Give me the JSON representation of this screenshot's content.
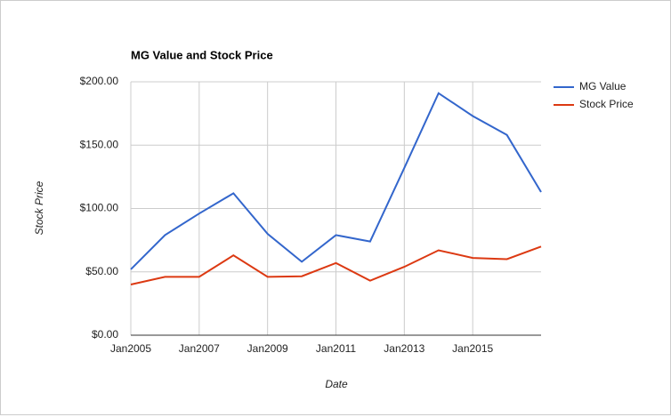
{
  "chart_data": {
    "type": "line",
    "title": "MG Value and Stock Price",
    "x_label": "Date",
    "y_label": "Stock Price",
    "x": [
      "2005-01",
      "2006-01",
      "2007-01",
      "2008-01",
      "2009-01",
      "2010-01",
      "2011-01",
      "2012-01",
      "2013-01",
      "2014-01",
      "2015-01",
      "2016-01",
      "2017-01"
    ],
    "series": [
      {
        "name": "MG Value",
        "color": "#3366cc",
        "values": [
          52,
          79,
          96,
          112,
          80,
          58,
          79,
          74,
          132,
          191,
          173,
          158,
          113
        ]
      },
      {
        "name": "Stock Price",
        "color": "#dc3912",
        "values": [
          40,
          46,
          46,
          63,
          46,
          46.5,
          57,
          43,
          54,
          67,
          61,
          60,
          70
        ]
      }
    ],
    "xlim": [
      "2005-01",
      "2017-01"
    ],
    "xticks": [
      {
        "value": "2005-01",
        "label": "Jan2005"
      },
      {
        "value": "2007-01",
        "label": "Jan2007"
      },
      {
        "value": "2009-01",
        "label": "Jan2009"
      },
      {
        "value": "2011-01",
        "label": "Jan2011"
      },
      {
        "value": "2013-01",
        "label": "Jan2013"
      },
      {
        "value": "2015-01",
        "label": "Jan2015"
      }
    ],
    "ylim": [
      0,
      200
    ],
    "yticks": [
      {
        "value": 0,
        "label": "$0.00"
      },
      {
        "value": 50,
        "label": "$50.00"
      },
      {
        "value": 100,
        "label": "$100.00"
      },
      {
        "value": 150,
        "label": "$150.00"
      },
      {
        "value": 200,
        "label": "$200.00"
      }
    ],
    "grid": true,
    "legend": "right"
  }
}
